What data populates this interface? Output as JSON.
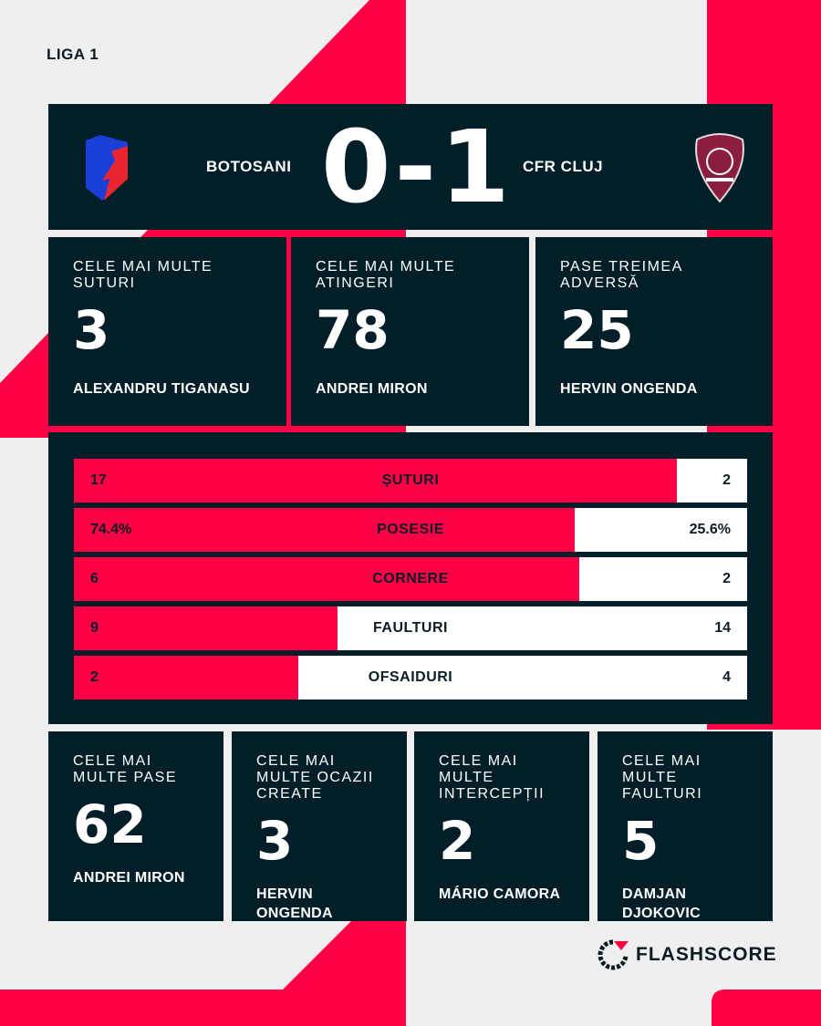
{
  "colors": {
    "accent": "#ff0046",
    "card": "#021e29",
    "background": "#efefef"
  },
  "league": "LIGA 1",
  "match": {
    "home": "BOTOSANI",
    "away": "CFR CLUJ",
    "score": "0-1",
    "home_logo": "botosani-crest",
    "away_logo": "cfr-cluj-crest"
  },
  "top_players": [
    {
      "label": "CELE MAI MULTE SUTURI",
      "value": "3",
      "player": "ALEXANDRU TIGANASU"
    },
    {
      "label": "CELE MAI MULTE ATINGERI",
      "value": "78",
      "player": "ANDREI MIRON"
    },
    {
      "label": "PASE TREIMEA ADVERSĂ",
      "value": "25",
      "player": "HERVIN ONGENDA"
    }
  ],
  "stats": [
    {
      "name": "ȘUTURI",
      "home": "17",
      "away": "2",
      "home_share": 89.5
    },
    {
      "name": "POSESIE",
      "home": "74.4%",
      "away": "25.6%",
      "home_share": 74.4
    },
    {
      "name": "CORNERE",
      "home": "6",
      "away": "2",
      "home_share": 75
    },
    {
      "name": "FAULTURI",
      "home": "9",
      "away": "14",
      "home_share": 39.1
    },
    {
      "name": "OFSAIDURI",
      "home": "2",
      "away": "4",
      "home_share": 33.3
    }
  ],
  "bottom_players": [
    {
      "label": "CELE MAI MULTE PASE",
      "value": "62",
      "player": "ANDREI MIRON"
    },
    {
      "label": "CELE MAI MULTE OCAZII CREATE",
      "value": "3",
      "player": "HERVIN ONGENDA"
    },
    {
      "label": "CELE MAI MULTE INTERCEPȚII",
      "value": "2",
      "player": "MÁRIO CAMORA"
    },
    {
      "label": "CELE MAI MULTE FAULTURI",
      "value": "5",
      "player": "DAMJAN DJOKOVIC"
    }
  ],
  "brand": "FLASHSCORE"
}
